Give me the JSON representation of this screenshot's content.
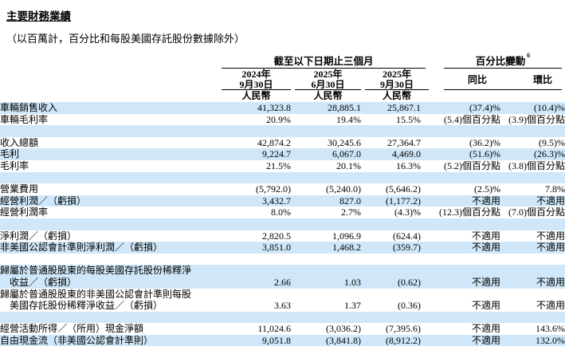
{
  "page": {
    "title": "主要財務業績",
    "subtitle": "（以百萬計，百分比和每股美國存託股份數據除外）"
  },
  "colors": {
    "stripe": "#cfe7f8",
    "text": "#000000",
    "rule": "#000000"
  },
  "table": {
    "period_group": "截至以下日期止三個月",
    "pct_group": "百分比變動",
    "pct_group_note": "6",
    "date_columns": [
      {
        "year": "2024年",
        "date": "9月30日",
        "currency": "人民幣"
      },
      {
        "year": "2025年",
        "date": "6月30日",
        "currency": "人民幣"
      },
      {
        "year": "2025年",
        "date": "9月30日",
        "currency": "人民幣"
      }
    ],
    "change_columns": [
      {
        "label": "同比"
      },
      {
        "label": "環比"
      }
    ],
    "rows": [
      {
        "label": "車輛銷售收入",
        "values": [
          "41,323.8",
          "28,885.1",
          "25,867.1",
          "(37.4)%",
          "(10.4)%"
        ],
        "shade": true
      },
      {
        "label": "車輛毛利率",
        "values": [
          "20.9%",
          "19.4%",
          "15.5%",
          "(5.4)個百分點",
          "(3.9)個百分點"
        ],
        "shade": false
      },
      {
        "blank": true,
        "shade": true
      },
      {
        "label": "收入總額",
        "values": [
          "42,874.2",
          "30,245.6",
          "27,364.7",
          "(36.2)%",
          "(9.5)%"
        ],
        "shade": false
      },
      {
        "label": "毛利",
        "values": [
          "9,224.7",
          "6,067.0",
          "4,469.0",
          "(51.6)%",
          "(26.3)%"
        ],
        "shade": true
      },
      {
        "label": "毛利率",
        "values": [
          "21.5%",
          "20.1%",
          "16.3%",
          "(5.2)個百分點",
          "(3.8)個百分點"
        ],
        "shade": false
      },
      {
        "blank": true,
        "shade": true
      },
      {
        "label": "營業費用",
        "values": [
          "(5,792.0)",
          "(5,240.0)",
          "(5,646.2)",
          "(2.5)%",
          "7.8%"
        ],
        "shade": false
      },
      {
        "label": "經營利潤／（虧損）",
        "values": [
          "3,432.7",
          "827.0",
          "(1,177.2)",
          "不適用",
          "不適用"
        ],
        "shade": true
      },
      {
        "label": "經營利潤率",
        "values": [
          "8.0%",
          "2.7%",
          "(4.3)%",
          "(12.3)個百分點",
          "(7.0)個百分點"
        ],
        "shade": false
      },
      {
        "blank": true,
        "shade": true
      },
      {
        "label": "淨利潤／（虧損）",
        "values": [
          "2,820.5",
          "1,096.9",
          "(624.4)",
          "不適用",
          "不適用"
        ],
        "shade": false
      },
      {
        "label": "非美國公認會計準則淨利潤／（虧損）",
        "values": [
          "3,851.0",
          "1,468.2",
          "(359.7)",
          "不適用",
          "不適用"
        ],
        "shade": true
      },
      {
        "blank": true,
        "shade": false
      },
      {
        "label": "歸屬於普通股股東的每股美國存託股份稀釋淨\n　收益／（虧損）",
        "values": [
          "2.66",
          "1.03",
          "(0.62)",
          "不適用",
          "不適用"
        ],
        "shade": true,
        "twoline": true
      },
      {
        "label": "歸屬於普通股股東的非美國公認會計準則每股\n　美國存託股份稀釋淨收益／（虧損）",
        "values": [
          "3.63",
          "1.37",
          "(0.36)",
          "不適用",
          "不適用"
        ],
        "shade": false,
        "twoline": true
      },
      {
        "blank": true,
        "shade": true
      },
      {
        "label": "經營活動所得／（所用）現金淨額",
        "values": [
          "11,024.6",
          "(3,036.2)",
          "(7,395.6)",
          "不適用",
          "143.6%"
        ],
        "shade": false
      },
      {
        "label": "自由現金流（非美國公認會計準則）",
        "values": [
          "9,051.8",
          "(3,841.8)",
          "(8,912.2)",
          "不適用",
          "132.0%"
        ],
        "shade": true
      }
    ]
  }
}
